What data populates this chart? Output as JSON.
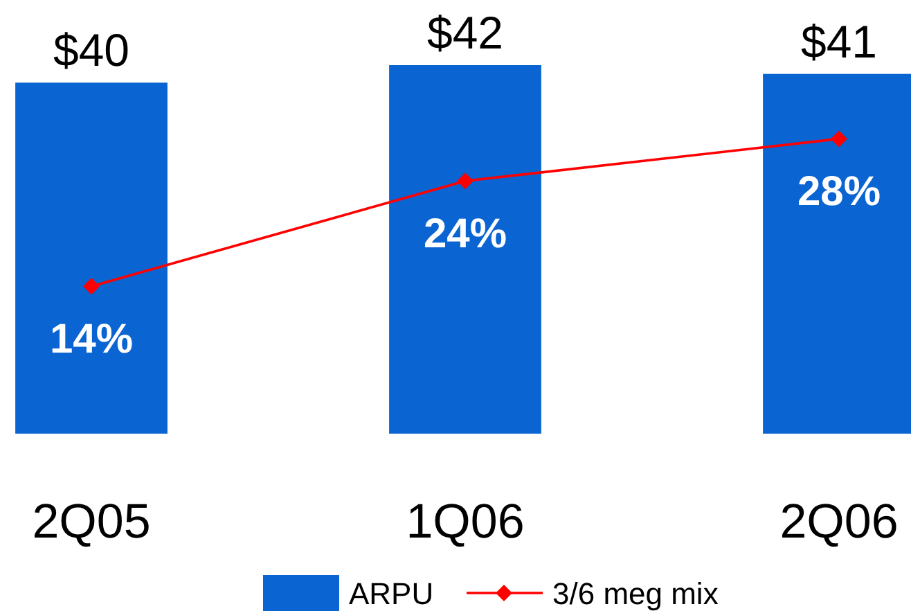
{
  "chart_data": {
    "type": "bar",
    "categories": [
      "2Q05",
      "1Q06",
      "2Q06"
    ],
    "series": [
      {
        "name": "ARPU",
        "color": "#0a64d2",
        "values": [
          40,
          42,
          41
        ],
        "value_labels": [
          "$40",
          "$42",
          "$41"
        ]
      },
      {
        "name": "3/6 meg mix",
        "type": "line",
        "axis": "y2",
        "color": "#ff0000",
        "values": [
          14,
          24,
          28
        ],
        "value_labels": [
          "14%",
          "24%",
          "28%"
        ],
        "marker": "diamond"
      }
    ],
    "ylim": [
      0,
      42
    ],
    "y2lim": [
      0,
      35
    ],
    "legend": "bottom",
    "grid": false
  }
}
